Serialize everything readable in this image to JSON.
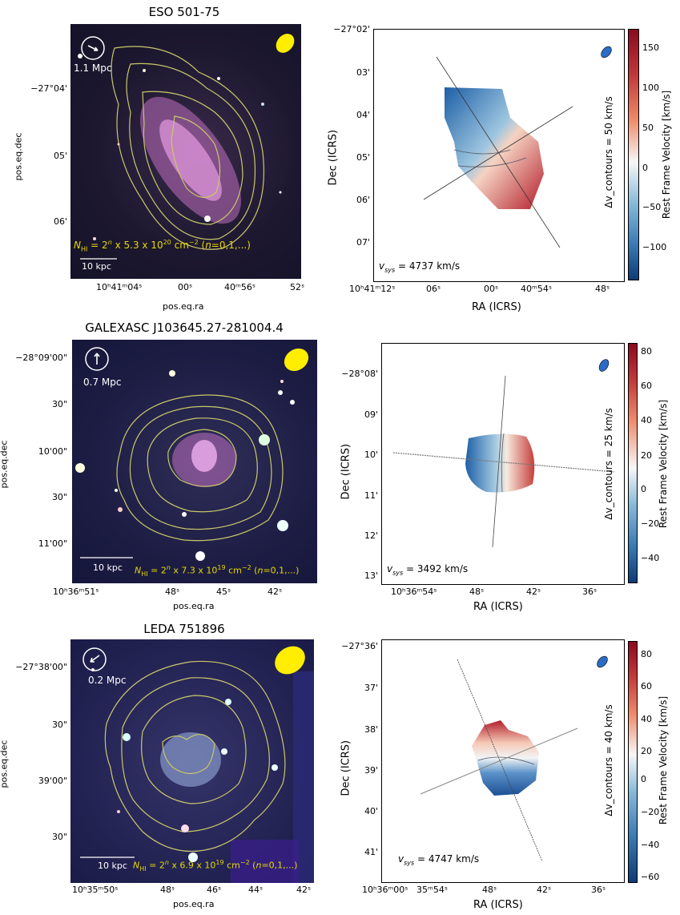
{
  "panels": [
    {
      "title": "ESO 501-75",
      "image": {
        "xlabel": "pos.eq.ra",
        "ylabel": "pos.eq.dec",
        "yticks": [
          "−27°04'",
          "05'",
          "06'"
        ],
        "xticks": [
          "10ʰ41ᵐ04ˢ",
          "00ˢ",
          "40ᵐ56ˢ",
          "52ˢ"
        ],
        "scale_distance": "1.1 Mpc",
        "scale_bar": "10 kpc",
        "contour_note": "N_HI = 2^n x 5.3 x 10^20 cm^-2 (n=0,1,...)",
        "contour_base": "5.3 x 10",
        "contour_exp": "20"
      },
      "velocity_map": {
        "xlabel": "RA (ICRS)",
        "ylabel": "Dec (ICRS)",
        "yticks": [
          "−27°02'",
          "03'",
          "04'",
          "05'",
          "06'",
          "07'"
        ],
        "xticks": [
          "10ʰ41ᵐ12ˢ",
          "06ˢ",
          "00ˢ",
          "40ᵐ54ˢ",
          "48ˢ"
        ],
        "vsys": "4737 km/s",
        "contour_step": "Δv_contours = 50 km/s",
        "cbar_label": "Rest Frame Velocity [km/s]",
        "cbar_ticks": [
          "150",
          "100",
          "50",
          "0",
          "−50",
          "−100"
        ]
      }
    },
    {
      "title": "GALEXASC J103645.27-281004.4",
      "image": {
        "xlabel": "pos.eq.ra",
        "ylabel": "pos.eq.dec",
        "yticks": [
          "−28°09'00\"",
          "30\"",
          "10'00\"",
          "30\"",
          "11'00\""
        ],
        "xticks": [
          "10ʰ36ᵐ51ˢ",
          "48ˢ",
          "45ˢ",
          "42ˢ"
        ],
        "scale_distance": "0.7 Mpc",
        "scale_bar": "10 kpc",
        "contour_note": "N_HI = 2^n x 7.3 x 10^19 cm^-2 (n=0,1,...)",
        "contour_base": "7.3 x 10",
        "contour_exp": "19"
      },
      "velocity_map": {
        "xlabel": "RA (ICRS)",
        "ylabel": "Dec (ICRS)",
        "yticks": [
          "−28°08'",
          "09'",
          "10'",
          "11'",
          "12'",
          "13'"
        ],
        "xticks": [
          "10ʰ36ᵐ54ˢ",
          "48ˢ",
          "42ˢ",
          "36ˢ"
        ],
        "vsys": "3492 km/s",
        "contour_step": "Δv_contours = 25 km/s",
        "cbar_label": "Rest Frame Velocity [km/s]",
        "cbar_ticks": [
          "80",
          "60",
          "40",
          "20",
          "0",
          "−20",
          "−40"
        ]
      }
    },
    {
      "title": "LEDA 751896",
      "image": {
        "xlabel": "pos.eq.ra",
        "ylabel": "pos.eq.dec",
        "yticks": [
          "−27°38'00\"",
          "30\"",
          "39'00\"",
          "30\""
        ],
        "xticks": [
          "10ʰ35ᵐ50ˢ",
          "48ˢ",
          "46ˢ",
          "44ˢ",
          "42ˢ"
        ],
        "scale_distance": "0.2 Mpc",
        "scale_bar": "10 kpc",
        "contour_note": "N_HI = 2^n x 6.9 x 10^19 cm^-2 (n=0,1,...)",
        "contour_base": "6.9 x 10",
        "contour_exp": "19"
      },
      "velocity_map": {
        "xlabel": "RA (ICRS)",
        "ylabel": "Dec (ICRS)",
        "yticks": [
          "−27°36'",
          "37'",
          "38'",
          "39'",
          "40'",
          "41'"
        ],
        "xticks": [
          "10ʰ36ᵐ00ˢ",
          "35ᵐ54ˢ",
          "48ˢ",
          "42ˢ",
          "36ˢ"
        ],
        "vsys": "4747 km/s",
        "contour_step": "Δv_contours = 40 km/s",
        "cbar_label": "Rest Frame Velocity [km/s]",
        "cbar_ticks": [
          "80",
          "60",
          "40",
          "20",
          "0",
          "−20",
          "−40",
          "−60"
        ]
      }
    }
  ],
  "colors": {
    "sky": "#1b1840",
    "contour": "#c9c86a",
    "beam": "#ffee00",
    "cmap_red": "#8b0a1f",
    "cmap_blue": "#0d3b75"
  }
}
